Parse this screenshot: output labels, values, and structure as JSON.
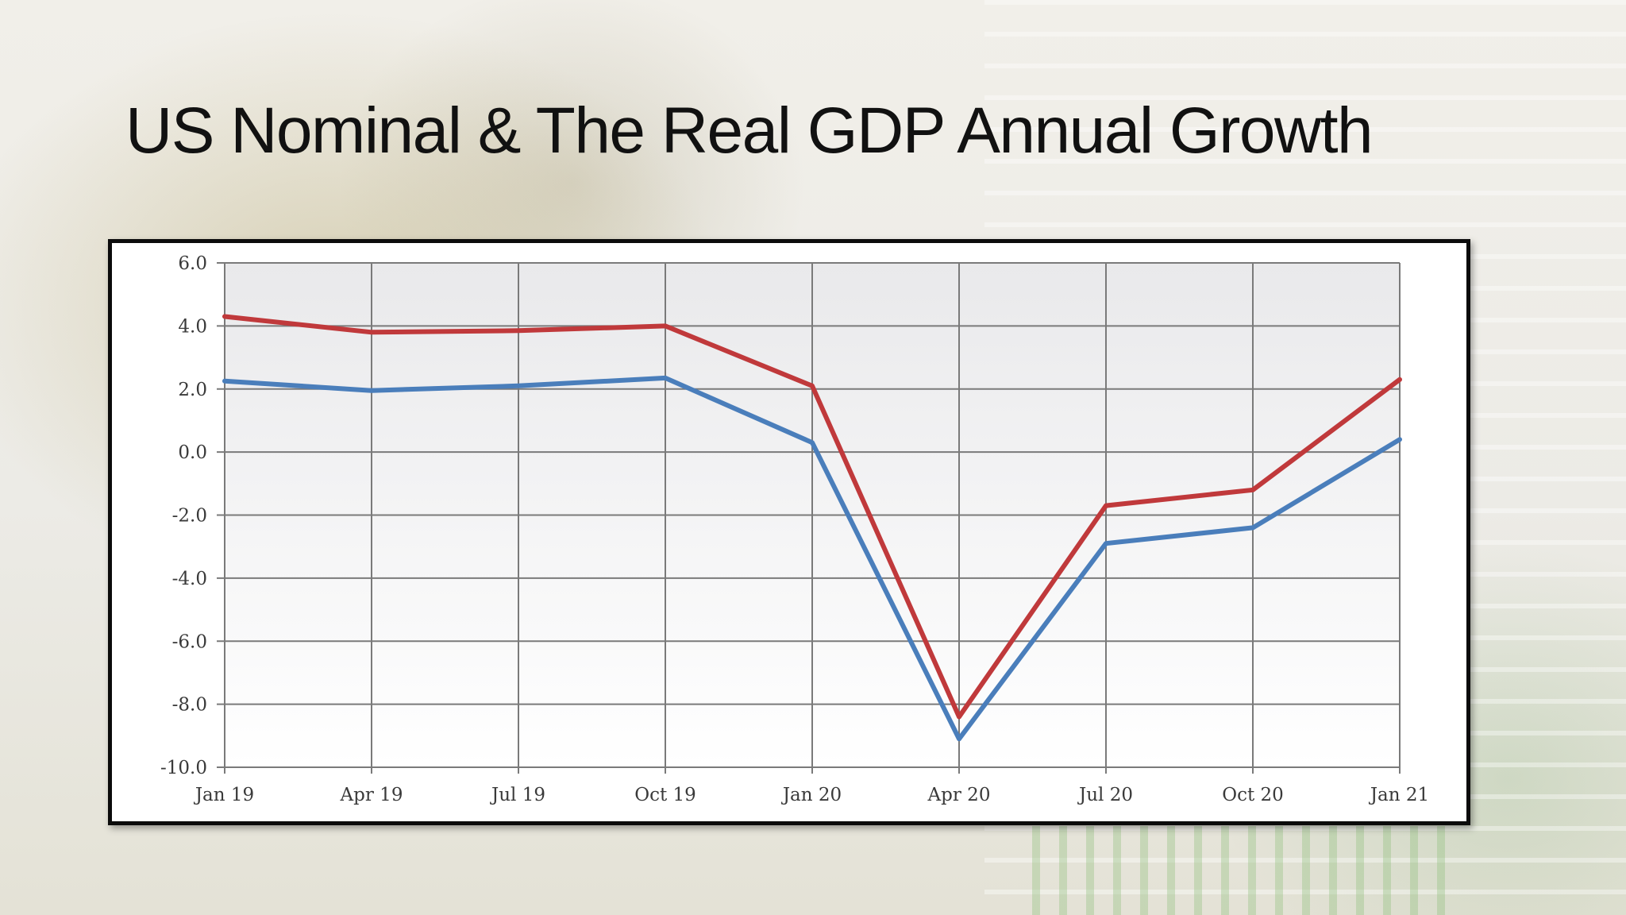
{
  "slide": {
    "title": "US Nominal & The Real GDP Annual Growth"
  },
  "chart_data": {
    "type": "line",
    "title": "US Nominal & The Real GDP Annual Growth",
    "categories": [
      "Jan 19",
      "Apr 19",
      "Jul 19",
      "Oct 19",
      "Jan 20",
      "Apr 20",
      "Jul 20",
      "Oct 20",
      "Jan 21"
    ],
    "yticks": [
      "6.0",
      "4.0",
      "2.0",
      "0.0",
      "-2.0",
      "-4.0",
      "-6.0",
      "-8.0",
      "-10.0"
    ],
    "ylim": [
      -10,
      6
    ],
    "grid": true,
    "legend": "none",
    "series": [
      {
        "color": "#c0393b",
        "values": [
          4.3,
          3.8,
          3.85,
          4.0,
          2.1,
          -8.4,
          -1.7,
          -1.2,
          2.3
        ]
      },
      {
        "color": "#4a7ebb",
        "values": [
          2.25,
          1.95,
          2.1,
          2.35,
          0.3,
          -9.1,
          -2.9,
          -2.4,
          0.4
        ]
      }
    ]
  }
}
